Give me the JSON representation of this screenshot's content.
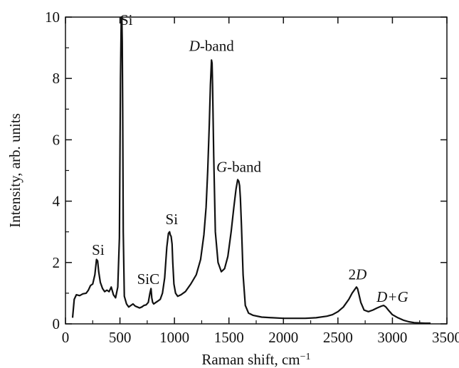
{
  "chart_data": {
    "type": "line",
    "xlabel": "Raman shift, cm",
    "xlabel_superscript": "−1",
    "ylabel": "Intensity, arb. units",
    "xlim": [
      0,
      3500
    ],
    "ylim": [
      0,
      10
    ],
    "x_ticks": [
      0,
      500,
      1000,
      1500,
      2000,
      2500,
      3000,
      3500
    ],
    "y_ticks": [
      0,
      2,
      4,
      6,
      8,
      10
    ],
    "x_tick_labels": [
      "0",
      "500",
      "1000",
      "1500",
      "2000",
      "2500",
      "3000",
      "3500"
    ],
    "y_tick_labels": [
      "0",
      "2",
      "4",
      "6",
      "8",
      "10"
    ],
    "grid": false,
    "series": [
      {
        "x": [
          65,
          80,
          100,
          130,
          160,
          190,
          210,
          230,
          250,
          270,
          285,
          295,
          305,
          320,
          340,
          360,
          380,
          400,
          420,
          440,
          460,
          480,
          495,
          505,
          512,
          517,
          521,
          525,
          530,
          540,
          560,
          580,
          600,
          620,
          640,
          660,
          680,
          700,
          720,
          740,
          760,
          775,
          785,
          792,
          800,
          810,
          830,
          850,
          870,
          890,
          910,
          930,
          945,
          955,
          962,
          970,
          978,
          985,
          995,
          1010,
          1030,
          1060,
          1100,
          1150,
          1200,
          1240,
          1270,
          1290,
          1305,
          1320,
          1330,
          1340,
          1345,
          1350,
          1360,
          1375,
          1400,
          1430,
          1460,
          1490,
          1520,
          1545,
          1565,
          1580,
          1590,
          1598,
          1605,
          1615,
          1630,
          1650,
          1680,
          1720,
          1800,
          1900,
          2000,
          2100,
          2200,
          2300,
          2400,
          2450,
          2500,
          2550,
          2600,
          2630,
          2650,
          2670,
          2680,
          2690,
          2710,
          2740,
          2780,
          2820,
          2860,
          2900,
          2920,
          2940,
          2970,
          3000,
          3050,
          3100,
          3150,
          3200,
          3250,
          3300,
          3350
        ],
        "y": [
          0.2,
          0.8,
          0.95,
          0.92,
          0.98,
          1.0,
          1.1,
          1.25,
          1.3,
          1.6,
          2.1,
          2.05,
          1.7,
          1.35,
          1.15,
          1.05,
          1.1,
          1.05,
          1.2,
          0.95,
          0.85,
          1.2,
          2.8,
          8.0,
          10.0,
          10.0,
          9.2,
          7.0,
          3.0,
          0.9,
          0.65,
          0.55,
          0.6,
          0.65,
          0.58,
          0.55,
          0.52,
          0.55,
          0.6,
          0.62,
          0.7,
          1.0,
          1.15,
          0.85,
          0.7,
          0.65,
          0.7,
          0.75,
          0.8,
          1.0,
          1.5,
          2.5,
          2.95,
          3.0,
          2.9,
          2.85,
          2.6,
          2.0,
          1.3,
          1.0,
          0.9,
          0.95,
          1.05,
          1.3,
          1.6,
          2.1,
          2.9,
          3.8,
          5.0,
          6.5,
          7.8,
          8.6,
          8.5,
          7.8,
          5.5,
          3.0,
          2.0,
          1.7,
          1.8,
          2.2,
          3.0,
          3.8,
          4.4,
          4.7,
          4.65,
          4.5,
          4.1,
          3.2,
          1.6,
          0.6,
          0.35,
          0.28,
          0.22,
          0.2,
          0.18,
          0.18,
          0.18,
          0.2,
          0.25,
          0.3,
          0.4,
          0.55,
          0.8,
          1.0,
          1.1,
          1.2,
          1.15,
          1.0,
          0.7,
          0.45,
          0.4,
          0.45,
          0.52,
          0.58,
          0.6,
          0.55,
          0.42,
          0.3,
          0.2,
          0.12,
          0.07,
          0.04,
          0.03,
          0.02,
          0.02
        ]
      }
    ],
    "annotations": [
      {
        "text": "Si",
        "x": 300,
        "y": 2.25,
        "italic_part": ""
      },
      {
        "text": "Si",
        "x": 560,
        "y": 9.75,
        "italic_part": ""
      },
      {
        "text": "SiC",
        "x": 760,
        "y": 1.3,
        "italic_part": ""
      },
      {
        "text": "Si",
        "x": 975,
        "y": 3.25,
        "italic_part": ""
      },
      {
        "text": "-band",
        "x": 1340,
        "y": 8.9,
        "italic_part": "D"
      },
      {
        "text": "-band",
        "x": 1590,
        "y": 4.95,
        "italic_part": "G"
      },
      {
        "text": "2",
        "x": 2680,
        "y": 1.45,
        "italic_part": "D"
      },
      {
        "text": "D+G",
        "x": 3000,
        "y": 0.72,
        "italic_part": "all"
      }
    ],
    "line_color": "#111111"
  }
}
